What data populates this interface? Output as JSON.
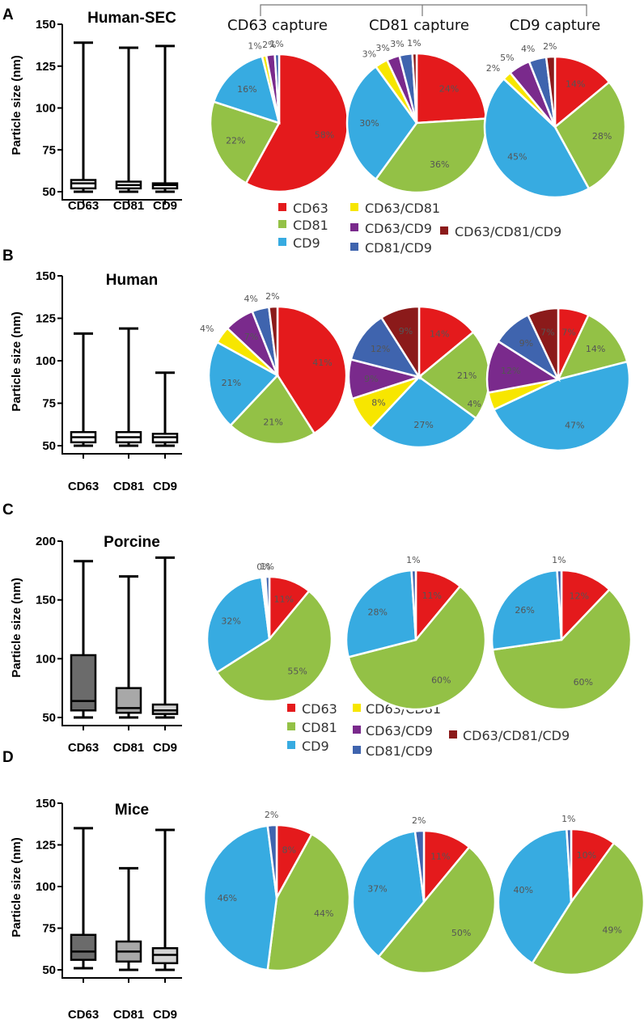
{
  "figure": {
    "capture_titles": [
      "CD63 capture",
      "CD81 capture",
      "CD9 capture"
    ]
  },
  "legend": {
    "items": [
      {
        "label": "CD63",
        "color": "#e41a1c"
      },
      {
        "label": "CD63/CD81",
        "color": "#f7e600"
      },
      {
        "label": "CD81",
        "color": "#93c146"
      },
      {
        "label": "CD63/CD9",
        "color": "#7a2a8c"
      },
      {
        "label": "CD63/CD81/CD9",
        "color": "#8b1a1a"
      },
      {
        "label": "CD9",
        "color": "#37abe1"
      },
      {
        "label": "CD81/CD9",
        "color": "#3f64ae"
      }
    ]
  },
  "chart_data": [
    {
      "panel": "A",
      "box": {
        "type": "box",
        "title": "Human-SEC",
        "ylabel": "Particle size (nm)",
        "categories": [
          "CD63",
          "CD81",
          "CD9"
        ],
        "ylim": [
          50,
          150
        ],
        "yticks": [
          50,
          75,
          100,
          125,
          150
        ],
        "fill": "#ffffff",
        "boxes": [
          {
            "min": 50,
            "q1": 52,
            "median": 55,
            "q3": 57,
            "max": 139
          },
          {
            "min": 50,
            "q1": 52,
            "median": 54,
            "q3": 56,
            "max": 136
          },
          {
            "min": 50,
            "q1": 52,
            "median": 54,
            "q3": 55,
            "max": 137
          }
        ]
      },
      "pies": [
        {
          "title": "CD63 capture",
          "slices": [
            {
              "label": "CD63",
              "value": 58,
              "text": "58%"
            },
            {
              "label": "CD81",
              "value": 22,
              "text": "22%"
            },
            {
              "label": "CD9",
              "value": 16,
              "text": "16%"
            },
            {
              "label": "CD63/CD81",
              "value": 1,
              "text": "1%"
            },
            {
              "label": "CD63/CD9",
              "value": 2,
              "text": "2%"
            },
            {
              "label": "CD81/CD9",
              "value": 1,
              "text": "1%"
            }
          ]
        },
        {
          "title": "CD81 capture",
          "slices": [
            {
              "label": "CD63",
              "value": 24,
              "text": "24%"
            },
            {
              "label": "CD81",
              "value": 36,
              "text": "36%"
            },
            {
              "label": "CD9",
              "value": 30,
              "text": "30%"
            },
            {
              "label": "CD63/CD81",
              "value": 3,
              "text": "3%"
            },
            {
              "label": "CD63/CD9",
              "value": 3,
              "text": "3%"
            },
            {
              "label": "CD81/CD9",
              "value": 3,
              "text": "3%"
            },
            {
              "label": "CD63/CD81/CD9",
              "value": 1,
              "text": "1%"
            }
          ]
        },
        {
          "title": "CD9 capture",
          "slices": [
            {
              "label": "CD63",
              "value": 14,
              "text": "14%"
            },
            {
              "label": "CD81",
              "value": 28,
              "text": "28%"
            },
            {
              "label": "CD9",
              "value": 45,
              "text": "45%"
            },
            {
              "label": "CD63/CD81",
              "value": 2,
              "text": "2%"
            },
            {
              "label": "CD63/CD9",
              "value": 5,
              "text": "5%"
            },
            {
              "label": "CD81/CD9",
              "value": 4,
              "text": "4%"
            },
            {
              "label": "CD63/CD81/CD9",
              "value": 2,
              "text": "2%"
            }
          ]
        }
      ]
    },
    {
      "panel": "B",
      "box": {
        "type": "box",
        "title": "Human",
        "ylabel": "Particle size (nm)",
        "categories": [
          "CD63",
          "CD81",
          "CD9"
        ],
        "ylim": [
          50,
          150
        ],
        "yticks": [
          50,
          75,
          100,
          125,
          150
        ],
        "fill": "#ffffff",
        "boxes": [
          {
            "min": 50,
            "q1": 52,
            "median": 55,
            "q3": 58,
            "max": 116
          },
          {
            "min": 50,
            "q1": 52,
            "median": 55,
            "q3": 58,
            "max": 119
          },
          {
            "min": 50,
            "q1": 52,
            "median": 55,
            "q3": 57,
            "max": 93
          }
        ]
      },
      "pies": [
        {
          "title": "CD63 capture",
          "slices": [
            {
              "label": "CD63",
              "value": 41,
              "text": "41%"
            },
            {
              "label": "CD81",
              "value": 21,
              "text": "21%"
            },
            {
              "label": "CD9",
              "value": 21,
              "text": "21%"
            },
            {
              "label": "CD63/CD81",
              "value": 4,
              "text": "4%"
            },
            {
              "label": "CD63/CD9",
              "value": 7,
              "text": "7%"
            },
            {
              "label": "CD81/CD9",
              "value": 4,
              "text": "4%"
            },
            {
              "label": "CD63/CD81/CD9",
              "value": 2,
              "text": "2%"
            }
          ]
        },
        {
          "title": "CD81 capture",
          "slices": [
            {
              "label": "CD63",
              "value": 14,
              "text": "14%"
            },
            {
              "label": "CD81",
              "value": 21,
              "text": "21%"
            },
            {
              "label": "CD9",
              "value": 27,
              "text": "27%"
            },
            {
              "label": "CD63/CD81",
              "value": 8,
              "text": "8%"
            },
            {
              "label": "CD63/CD9",
              "value": 9,
              "text": "9%"
            },
            {
              "label": "CD81/CD9",
              "value": 12,
              "text": "12%"
            },
            {
              "label": "CD63/CD81/CD9",
              "value": 9,
              "text": "9%"
            }
          ]
        },
        {
          "title": "CD9 capture",
          "slices": [
            {
              "label": "CD63",
              "value": 7,
              "text": "7%"
            },
            {
              "label": "CD81",
              "value": 14,
              "text": "14%"
            },
            {
              "label": "CD9",
              "value": 47,
              "text": "47%"
            },
            {
              "label": "CD63/CD81",
              "value": 4,
              "text": "4%"
            },
            {
              "label": "CD63/CD9",
              "value": 12,
              "text": "12%"
            },
            {
              "label": "CD81/CD9",
              "value": 9,
              "text": "9%"
            },
            {
              "label": "CD63/CD81/CD9",
              "value": 7,
              "text": "7%"
            }
          ]
        }
      ]
    },
    {
      "panel": "C",
      "box": {
        "type": "box",
        "title": "Porcine",
        "ylabel": "Particle size (nm)",
        "categories": [
          "CD63",
          "CD81",
          "CD9"
        ],
        "ylim": [
          50,
          200
        ],
        "yticks": [
          50,
          100,
          150,
          200
        ],
        "fill": [
          "#6b6b6b",
          "#a8a8a8",
          "#d3d3d3"
        ],
        "boxes": [
          {
            "min": 50,
            "q1": 56,
            "median": 64,
            "q3": 103,
            "max": 183
          },
          {
            "min": 50,
            "q1": 54,
            "median": 58,
            "q3": 75,
            "max": 170
          },
          {
            "min": 50,
            "q1": 53,
            "median": 56,
            "q3": 61,
            "max": 186
          }
        ]
      },
      "pies": [
        {
          "title": "CD63 capture",
          "slices": [
            {
              "label": "CD63",
              "value": 11,
              "text": "11%"
            },
            {
              "label": "CD81",
              "value": 55,
              "text": "55%"
            },
            {
              "label": "CD9",
              "value": 32,
              "text": "32%"
            },
            {
              "label": "CD63/CD81",
              "value": 0.5,
              "text": ""
            },
            {
              "label": "CD63/CD9",
              "value": 0.5,
              "text": "0%"
            },
            {
              "label": "CD81/CD9",
              "value": 1,
              "text": "1%"
            }
          ]
        },
        {
          "title": "CD81 capture",
          "slices": [
            {
              "label": "CD63",
              "value": 11,
              "text": "11%"
            },
            {
              "label": "CD81",
              "value": 60,
              "text": "60%"
            },
            {
              "label": "CD9",
              "value": 28,
              "text": "28%"
            },
            {
              "label": "CD81/CD9",
              "value": 1,
              "text": "1%"
            }
          ]
        },
        {
          "title": "CD9 capture",
          "slices": [
            {
              "label": "CD63",
              "value": 12,
              "text": "12%"
            },
            {
              "label": "CD81",
              "value": 60,
              "text": "60%"
            },
            {
              "label": "CD9",
              "value": 26,
              "text": "26%"
            },
            {
              "label": "CD81/CD9",
              "value": 1,
              "text": "1%"
            }
          ]
        }
      ]
    },
    {
      "panel": "D",
      "box": {
        "type": "box",
        "title": "Mice",
        "ylabel": "Particle size (nm)",
        "categories": [
          "CD63",
          "CD81",
          "CD9"
        ],
        "ylim": [
          50,
          150
        ],
        "yticks": [
          50,
          75,
          100,
          125,
          150
        ],
        "fill": [
          "#6b6b6b",
          "#a8a8a8",
          "#d3d3d3"
        ],
        "boxes": [
          {
            "min": 51,
            "q1": 56,
            "median": 61,
            "q3": 71,
            "max": 135
          },
          {
            "min": 50,
            "q1": 55,
            "median": 61,
            "q3": 67,
            "max": 111
          },
          {
            "min": 50,
            "q1": 54,
            "median": 59,
            "q3": 63,
            "max": 134
          }
        ]
      },
      "pies": [
        {
          "title": "CD63 capture",
          "slices": [
            {
              "label": "CD63",
              "value": 8,
              "text": "8%"
            },
            {
              "label": "CD81",
              "value": 44,
              "text": "44%"
            },
            {
              "label": "CD9",
              "value": 46,
              "text": "46%"
            },
            {
              "label": "CD81/CD9",
              "value": 2,
              "text": "2%"
            }
          ]
        },
        {
          "title": "CD81 capture",
          "slices": [
            {
              "label": "CD63",
              "value": 11,
              "text": "11%"
            },
            {
              "label": "CD81",
              "value": 50,
              "text": "50%"
            },
            {
              "label": "CD9",
              "value": 37,
              "text": "37%"
            },
            {
              "label": "CD81/CD9",
              "value": 2,
              "text": "2%"
            }
          ]
        },
        {
          "title": "CD9 capture",
          "slices": [
            {
              "label": "CD63",
              "value": 10,
              "text": "10%"
            },
            {
              "label": "CD81",
              "value": 49,
              "text": "49%"
            },
            {
              "label": "CD9",
              "value": 40,
              "text": "40%"
            },
            {
              "label": "CD81/CD9",
              "value": 1,
              "text": "1%"
            }
          ]
        }
      ]
    }
  ]
}
